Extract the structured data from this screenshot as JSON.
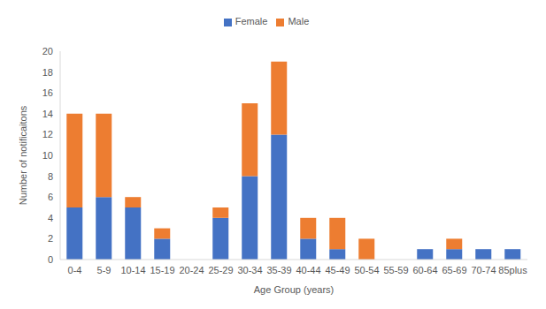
{
  "chart_data": {
    "type": "bar",
    "stacked": true,
    "grid": false,
    "legend": "top",
    "x_label": "Age Group (years)",
    "y_label": "Number of notificaitons",
    "categories": [
      "0-4",
      "5-9",
      "10-14",
      "15-19",
      "20-24",
      "25-29",
      "30-34",
      "35-39",
      "40-44",
      "45-49",
      "50-54",
      "55-59",
      "60-64",
      "65-69",
      "70-74",
      "85plus"
    ],
    "series": [
      {
        "name": "Female",
        "color": "#4472c4",
        "values": [
          5,
          6,
          5,
          2,
          0,
          4,
          8,
          12,
          2,
          1,
          0,
          0,
          1,
          1,
          1,
          1
        ]
      },
      {
        "name": "Male",
        "color": "#ed7d31",
        "values": [
          9,
          8,
          1,
          1,
          0,
          1,
          7,
          7,
          2,
          3,
          2,
          0,
          0,
          1,
          0,
          0
        ]
      }
    ],
    "ylim": [
      0,
      20
    ],
    "yticks": [
      0,
      2,
      4,
      6,
      8,
      10,
      12,
      14,
      16,
      18,
      20
    ]
  }
}
